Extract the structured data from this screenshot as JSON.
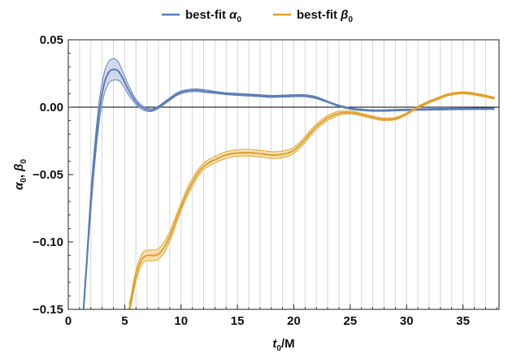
{
  "chart_data": {
    "type": "line",
    "title": "",
    "xlabel": {
      "var": "t",
      "sub": "0",
      "rest": "/M"
    },
    "ylabel": {
      "a": "α",
      "a_sub": "0",
      "sep": ", ",
      "b": "β",
      "b_sub": "0"
    },
    "xlim": [
      0,
      38.2
    ],
    "ylim": [
      -0.15,
      0.05
    ],
    "xticks": [
      0,
      5,
      10,
      15,
      20,
      25,
      30,
      35
    ],
    "xtick_labels": [
      "0",
      "5",
      "10",
      "15",
      "20",
      "25",
      "30",
      "35"
    ],
    "yticks": [
      -0.15,
      -0.1,
      -0.05,
      0.0,
      0.05
    ],
    "ytick_labels": [
      "-0.15",
      "-0.10",
      "-0.05",
      "0.00",
      "0.05"
    ],
    "vertical_gridlines": [
      1,
      2,
      3,
      4,
      5,
      6,
      7,
      8,
      9,
      10,
      11,
      12,
      13,
      14,
      15,
      16,
      17,
      18,
      19,
      20,
      21,
      22,
      23,
      24,
      25,
      26,
      27,
      28,
      29,
      30,
      31,
      32,
      33,
      34,
      35,
      36,
      37
    ],
    "zero_line": true,
    "legend_position": "top-center",
    "series": [
      {
        "name": "best-fit α₀",
        "label_text": "best-fit ",
        "symbol": "α",
        "sub": "0",
        "color": "#5B7DB6",
        "band_color": "#C9D3EA",
        "x": [
          1.35,
          1.6,
          2.0,
          2.4,
          2.8,
          3.2,
          3.6,
          4.0,
          4.4,
          4.8,
          5.2,
          5.6,
          6.0,
          6.5,
          7.0,
          7.5,
          8.0,
          8.5,
          9.0,
          9.5,
          10.0,
          10.5,
          11.0,
          11.5,
          12.0,
          12.5,
          13.0,
          14.0,
          15.0,
          16.0,
          17.0,
          18.0,
          19.0,
          20.0,
          21.0,
          22.0,
          23.0,
          24.0,
          25.0,
          26.0,
          27.0,
          28.0,
          29.0,
          30.0,
          31.0,
          32.0,
          33.0,
          34.0,
          35.0,
          36.0,
          37.0,
          37.8
        ],
        "y": [
          -0.15,
          -0.12,
          -0.07,
          -0.03,
          0.0,
          0.018,
          0.026,
          0.028,
          0.027,
          0.022,
          0.015,
          0.009,
          0.004,
          0.0,
          -0.002,
          -0.002,
          0.0,
          0.003,
          0.006,
          0.009,
          0.011,
          0.012,
          0.0125,
          0.0125,
          0.012,
          0.0115,
          0.011,
          0.01,
          0.0095,
          0.009,
          0.0085,
          0.008,
          0.0082,
          0.0085,
          0.0085,
          0.007,
          0.004,
          0.001,
          -0.001,
          -0.002,
          -0.0025,
          -0.0025,
          -0.0022,
          -0.002,
          -0.0018,
          -0.0016,
          -0.0015,
          -0.0014,
          -0.0013,
          -0.0012,
          -0.0012,
          -0.0011
        ],
        "band": [
          0.005,
          0.005,
          0.008,
          0.008,
          0.008,
          0.008,
          0.008,
          0.008,
          0.007,
          0.005,
          0.004,
          0.003,
          0.002,
          0.0015,
          0.0012,
          0.001,
          0.001,
          0.001,
          0.001,
          0.001,
          0.001,
          0.001,
          0.001,
          0.001,
          0.001,
          0.001,
          0.0008,
          0.0008,
          0.0008,
          0.0008,
          0.0008,
          0.0008,
          0.0008,
          0.0008,
          0.0008,
          0.0008,
          0.0006,
          0.0006,
          0.0006,
          0.0006,
          0.0006,
          0.0006,
          0.0006,
          0.0006,
          0.0006,
          0.0006,
          0.0006,
          0.0006,
          0.0006,
          0.0006,
          0.0006,
          0.0006
        ]
      },
      {
        "name": "best-fit β₀",
        "label_text": "best-fit ",
        "symbol": "β",
        "sub": "0",
        "color": "#E0A02A",
        "band_color": "#F3D9A3",
        "x": [
          5.4,
          5.6,
          5.8,
          6.0,
          6.3,
          6.6,
          7.0,
          7.5,
          8.0,
          8.5,
          9.0,
          9.5,
          10.0,
          10.5,
          11.0,
          11.5,
          12.0,
          12.5,
          13.0,
          13.5,
          14.0,
          14.5,
          15.0,
          15.5,
          16.0,
          16.5,
          17.0,
          17.5,
          18.0,
          18.5,
          19.0,
          19.5,
          20.0,
          20.5,
          21.0,
          21.5,
          22.0,
          22.5,
          23.0,
          23.5,
          24.0,
          24.5,
          25.0,
          25.5,
          26.0,
          26.5,
          27.0,
          27.5,
          28.0,
          28.5,
          29.0,
          29.5,
          30.0,
          30.5,
          31.0,
          31.5,
          32.0,
          32.5,
          33.0,
          33.5,
          34.0,
          34.5,
          35.0,
          35.5,
          36.0,
          36.5,
          37.0,
          37.5,
          37.8
        ],
        "y": [
          -0.15,
          -0.142,
          -0.133,
          -0.125,
          -0.117,
          -0.112,
          -0.11,
          -0.11,
          -0.109,
          -0.104,
          -0.096,
          -0.085,
          -0.074,
          -0.064,
          -0.056,
          -0.049,
          -0.044,
          -0.041,
          -0.039,
          -0.037,
          -0.0355,
          -0.0345,
          -0.034,
          -0.0338,
          -0.0338,
          -0.034,
          -0.0345,
          -0.035,
          -0.0355,
          -0.0355,
          -0.035,
          -0.034,
          -0.032,
          -0.0285,
          -0.024,
          -0.019,
          -0.0145,
          -0.011,
          -0.008,
          -0.006,
          -0.0045,
          -0.004,
          -0.004,
          -0.0045,
          -0.0055,
          -0.0065,
          -0.0075,
          -0.0085,
          -0.009,
          -0.009,
          -0.0085,
          -0.007,
          -0.005,
          -0.0025,
          0.0,
          0.002,
          0.004,
          0.0055,
          0.0072,
          0.0088,
          0.0098,
          0.0104,
          0.0106,
          0.0104,
          0.0098,
          0.009,
          0.0082,
          0.0072,
          0.0067
        ],
        "band": [
          0.004,
          0.004,
          0.004,
          0.004,
          0.004,
          0.004,
          0.004,
          0.004,
          0.004,
          0.004,
          0.0035,
          0.0035,
          0.003,
          0.003,
          0.003,
          0.0025,
          0.0025,
          0.0025,
          0.0025,
          0.0025,
          0.0025,
          0.0025,
          0.0025,
          0.0025,
          0.0025,
          0.0025,
          0.0025,
          0.0025,
          0.0025,
          0.0025,
          0.0025,
          0.0025,
          0.0022,
          0.0022,
          0.0022,
          0.002,
          0.002,
          0.002,
          0.0018,
          0.0018,
          0.0015,
          0.0012,
          0.001,
          0.001,
          0.001,
          0.001,
          0.001,
          0.001,
          0.001,
          0.001,
          0.0008,
          0.0008,
          0.0008,
          0.0008,
          0.0008,
          0.0008,
          0.0008,
          0.0008,
          0.0008,
          0.0008,
          0.0008,
          0.0008,
          0.0008,
          0.0008,
          0.0008,
          0.0008,
          0.0008,
          0.0008,
          0.0008
        ]
      }
    ]
  }
}
